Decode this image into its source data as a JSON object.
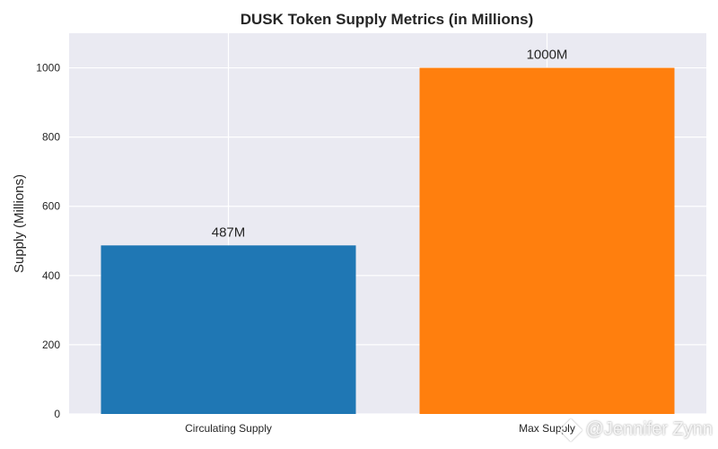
{
  "chart_data": {
    "type": "bar",
    "title": "DUSK Token Supply Metrics (in Millions)",
    "xlabel": "",
    "ylabel": "Supply (Millions)",
    "categories": [
      "Circulating Supply",
      "Max Supply"
    ],
    "values": [
      487,
      1000
    ],
    "value_labels": [
      "487M",
      "1000M"
    ],
    "colors": [
      "#1f77b4",
      "#ff7f0e"
    ],
    "ylim": [
      0,
      1100
    ],
    "yticks": [
      0,
      200,
      400,
      600,
      800,
      1000
    ],
    "grid": true,
    "background": "#eaeaf2"
  },
  "watermark": {
    "text": "@Jennifer Zynn"
  }
}
